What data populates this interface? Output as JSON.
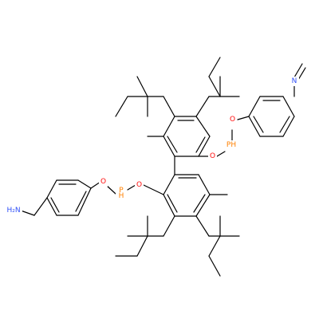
{
  "colors": {
    "bond": "#000000",
    "oxygen": "#ff0d0d",
    "phosphorus": "#ff8000",
    "nitrogen": "#3050f8",
    "background": "#ffffff"
  },
  "atom_labels": {
    "o1": "O",
    "p1": "PH",
    "o2": "O",
    "o3": "O",
    "p2": "P",
    "p2h": "H",
    "o4": "O",
    "n_imine": "N",
    "n_amine": "H₂N"
  }
}
